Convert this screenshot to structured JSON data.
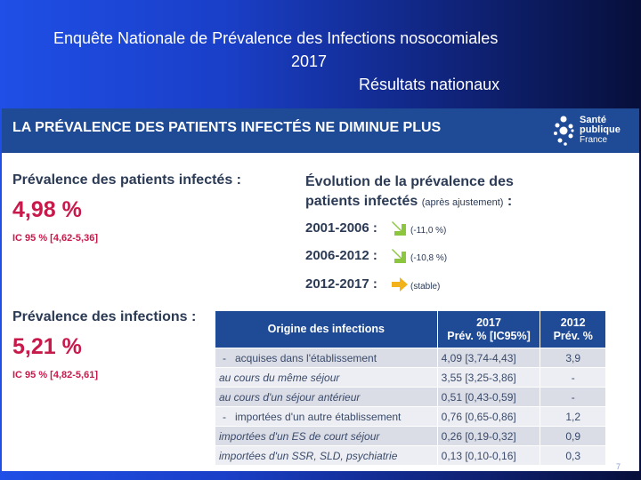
{
  "slide": {
    "title_line1": "Enquête Nationale de Prévalence des Infections nosocomiales",
    "title_line2": "2017",
    "title_line3": "Résultats nationaux",
    "page_number": "7"
  },
  "banner": {
    "title": "LA PRÉVALENCE DES PATIENTS INFECTÉS NE DIMINUE PLUS",
    "logo_line1": "Santé",
    "logo_line2": "publique",
    "logo_line3": "France"
  },
  "patients": {
    "heading": "Prévalence des patients infectés :",
    "value": "4,98 %",
    "ic": "IC 95 % [4,62-5,36]"
  },
  "evolution": {
    "heading_line1": "Évolution de la prévalence des",
    "heading_line2": "patients infectés",
    "heading_note": "(après ajustement)",
    "heading_colon": " :",
    "rows": [
      {
        "period": "2001-2006 :",
        "trend": "down",
        "value": "(-11,0 %)"
      },
      {
        "period": "2006-2012 :",
        "trend": "down",
        "value": "(-10,8 %)"
      },
      {
        "period": "2012-2017 :",
        "trend": "stable",
        "value": "(stable)"
      }
    ],
    "arrow_color": "#8cc63f"
  },
  "infections": {
    "heading": "Prévalence des infections :",
    "value": "5,21 %",
    "ic": "IC 95 % [4,82-5,61]"
  },
  "table": {
    "col1": "Origine des infections",
    "col2_line1": "2017",
    "col2_line2": "Prév. % [IC95%]",
    "col3_line1": "2012",
    "col3_line2": "Prév. %",
    "rows": [
      {
        "dash": "-",
        "label": "acquises dans l'établissement",
        "v2017": "4,09 [3,74-4,43]",
        "v2012": "3,9",
        "italic": false
      },
      {
        "dash": "",
        "label": "au cours du même séjour",
        "v2017": "3,55 [3,25-3,86]",
        "v2012": "-",
        "italic": true
      },
      {
        "dash": "",
        "label": "au cours d'un séjour antérieur",
        "v2017": "0,51 [0,43-0,59]",
        "v2012": "-",
        "italic": true
      },
      {
        "dash": "-",
        "label": "importées d'un autre établissement",
        "v2017": "0,76 [0,65-0,86]",
        "v2012": "1,2",
        "italic": false
      },
      {
        "dash": "",
        "label": "importées d'un ES de court séjour",
        "v2017": "0,26 [0,19-0,32]",
        "v2012": "0,9",
        "italic": true
      },
      {
        "dash": "",
        "label": "importées d'un SSR, SLD, psychiatrie",
        "v2017": "0,13 [0,10-0,16]",
        "v2012": "0,3",
        "italic": true
      }
    ]
  }
}
